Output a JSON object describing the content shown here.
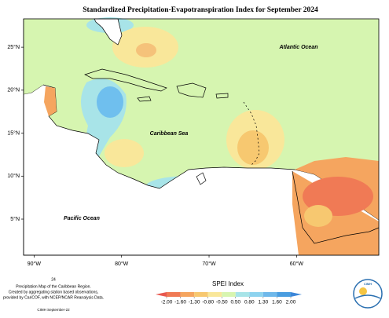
{
  "header": {
    "title": "Standardized Precipitation-Evapotranspiration Index for September 2024"
  },
  "map": {
    "xlim": [
      -91.2,
      -50.6
    ],
    "ylim": [
      0.8,
      28.3
    ],
    "xticks": [
      {
        "value": -90,
        "label": "90°W"
      },
      {
        "value": -80,
        "label": "80°W"
      },
      {
        "value": -70,
        "label": "70°W"
      },
      {
        "value": -60,
        "label": "60°W"
      }
    ],
    "yticks": [
      {
        "value": 5,
        "label": "5°N"
      },
      {
        "value": 10,
        "label": "10°N"
      },
      {
        "value": 15,
        "label": "15°N"
      },
      {
        "value": 20,
        "label": "20°N"
      },
      {
        "value": 25,
        "label": "25°N"
      }
    ],
    "labels": [
      "Atlantic Ocean",
      "Caribbean Sea",
      "Pacific Ocean"
    ]
  },
  "legend": {
    "title": "SPEI Index",
    "ticks": [
      {
        "value": -2,
        "label": "-2.00"
      },
      {
        "value": -1.6,
        "label": "-1.60"
      },
      {
        "value": -1.3,
        "label": "-1.30"
      },
      {
        "value": -0.8,
        "label": "-0.80"
      },
      {
        "value": -0.5,
        "label": "-0.50"
      },
      {
        "value": 0.5,
        "label": "0.50"
      },
      {
        "value": 0.8,
        "label": "0.80"
      },
      {
        "value": 1.3,
        "label": "1.30"
      },
      {
        "value": 1.6,
        "label": "1.60"
      },
      {
        "value": 2,
        "label": "2.00"
      }
    ],
    "colors": [
      "#e8584f",
      "#f07a55",
      "#f5a55f",
      "#f7c870",
      "#f9e79a",
      "#d8f5b0",
      "#a8e4e8",
      "#8dd3ef",
      "#6fb8ea",
      "#4a9de0",
      "#3c86d8"
    ]
  },
  "footer": {
    "page": "24",
    "lines": [
      "Precipitation Map of the Caribbean Region.",
      "Created by aggregating station based observations,",
      "provided by CariCOF, with NCEP/NCAR Reanalysis Data."
    ],
    "credit": "CIMH September-22"
  },
  "logo": {
    "label": "CIMH"
  }
}
